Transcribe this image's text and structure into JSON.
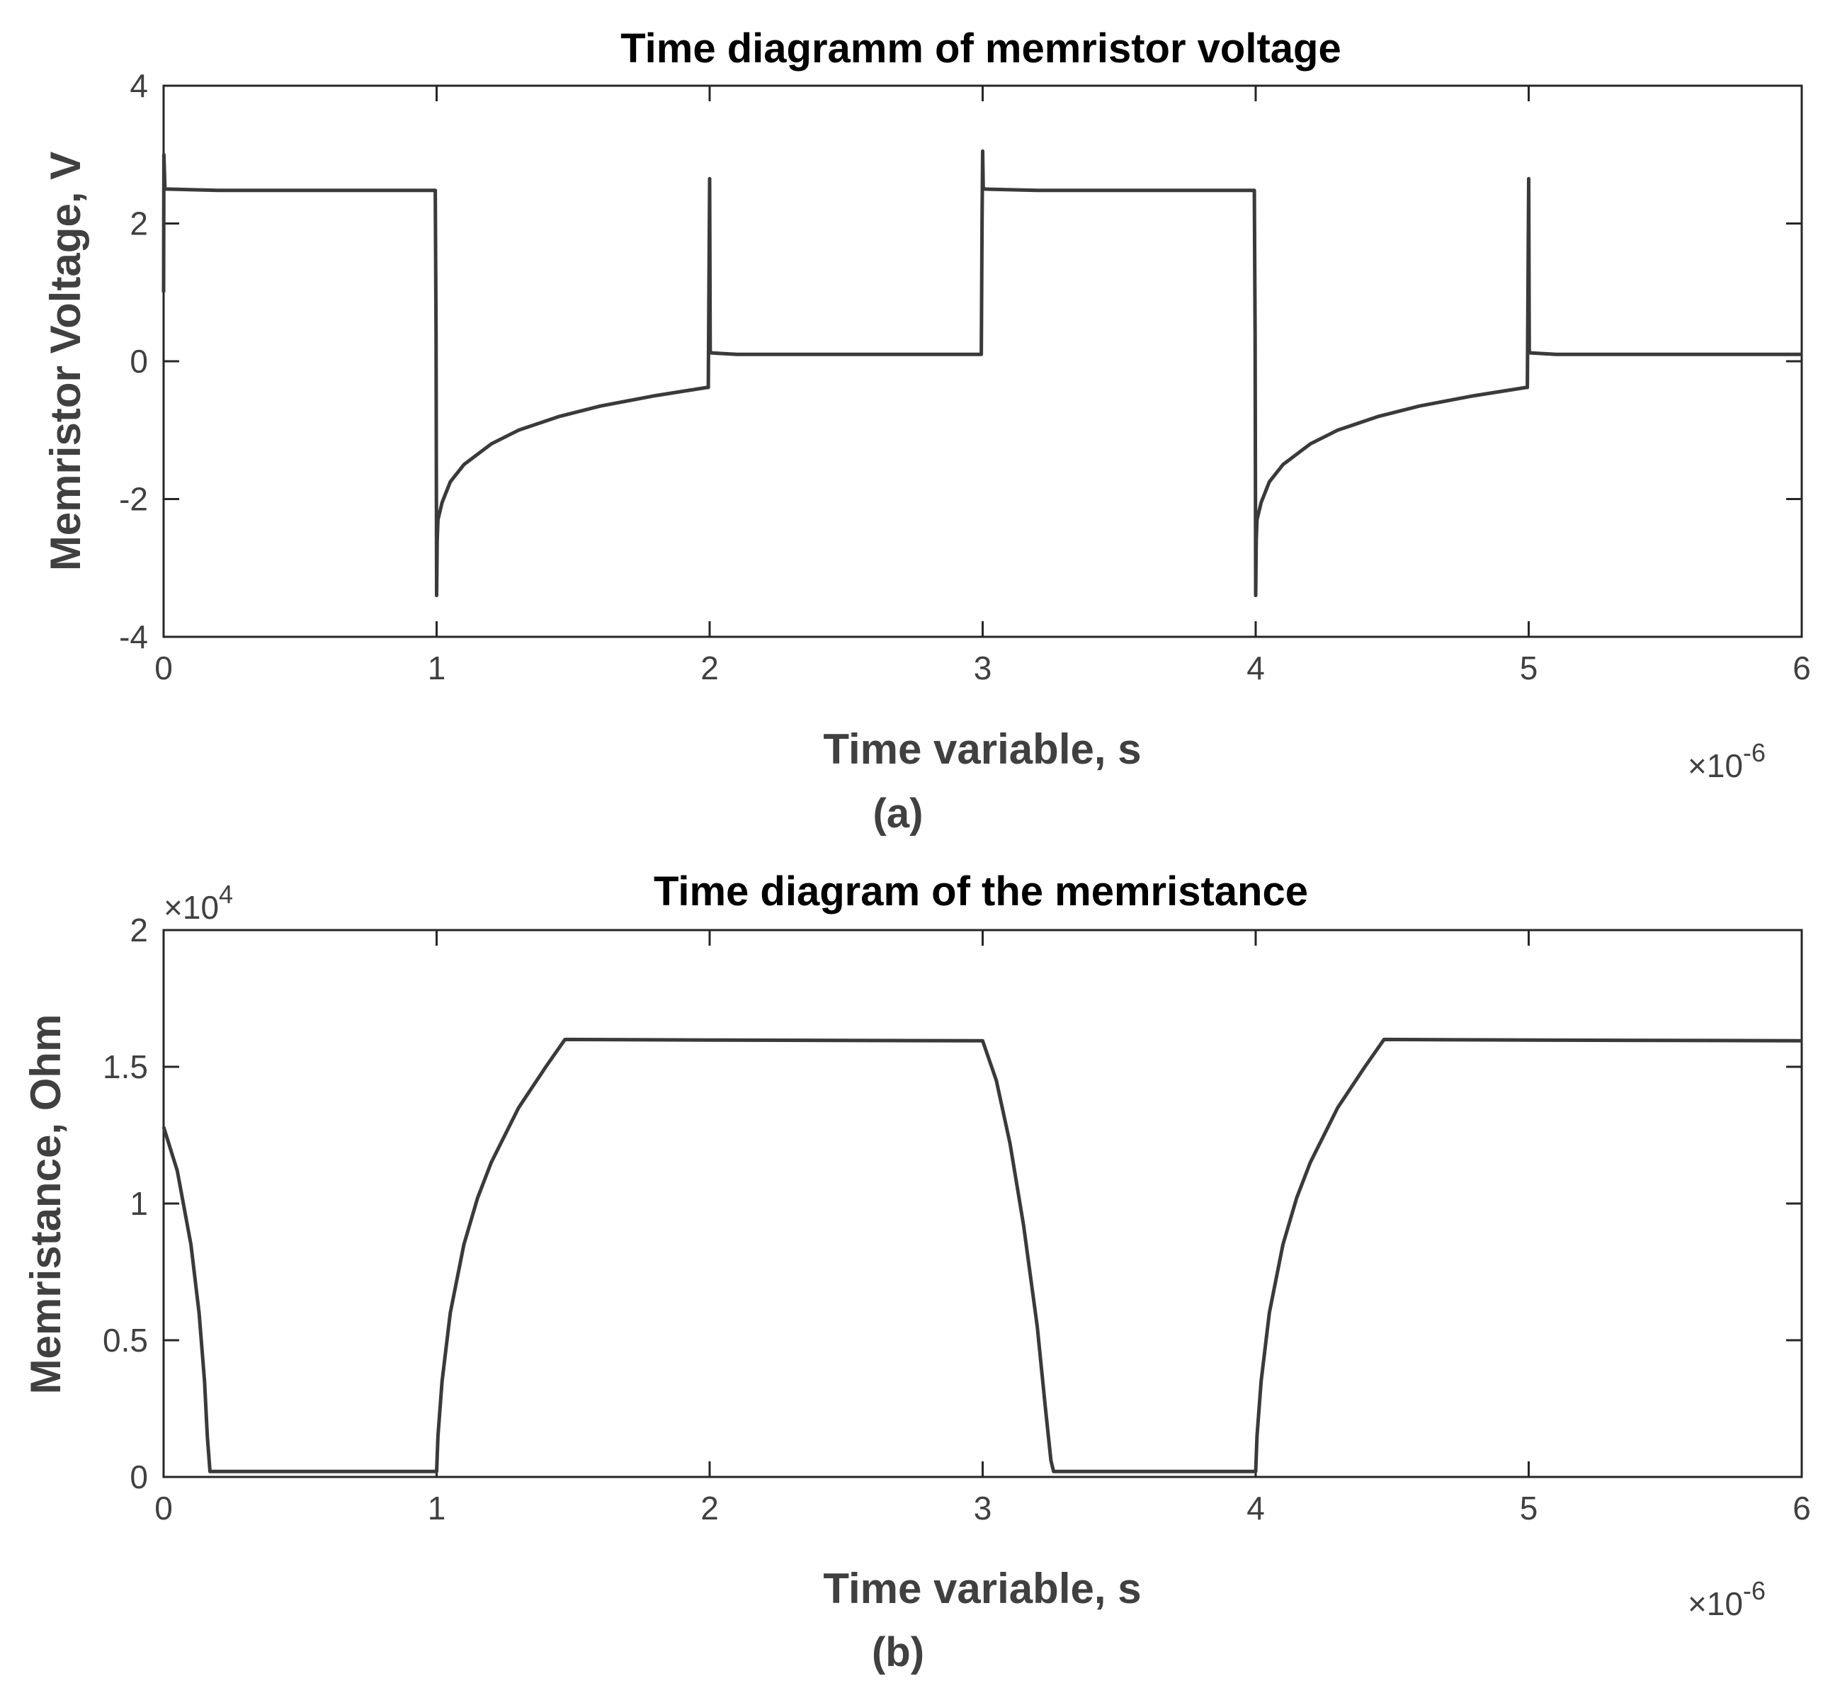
{
  "chart_data": [
    {
      "type": "line",
      "title": "Time diagramm of memristor voltage",
      "xlabel": "Time variable, s",
      "ylabel": "Memristor Voltage, V",
      "caption": "(a)",
      "x_exponent_label": {
        "base": "×10",
        "exp": "-6"
      },
      "xlim": [
        0,
        6
      ],
      "ylim": [
        -4,
        4
      ],
      "x_ticks": [
        0,
        1,
        2,
        3,
        4,
        5,
        6
      ],
      "y_ticks": [
        -4,
        -2,
        0,
        2,
        4
      ],
      "x_tick_labels": [
        "0",
        "1",
        "2",
        "3",
        "4",
        "5",
        "6"
      ],
      "y_tick_labels": [
        "-4",
        "-2",
        "0",
        "2",
        "4"
      ],
      "line_color": "#3a3a3a",
      "series": [
        {
          "x": [
            0,
            0.001,
            0.005,
            0.01,
            0.2,
            0.99,
            0.995,
            0.998,
            1.0,
            1.002,
            1.005,
            1.02,
            1.05,
            1.1,
            1.2,
            1.3,
            1.45,
            1.6,
            1.8,
            1.99,
            1.995,
            2.0,
            2.002,
            2.006,
            2.01,
            2.1,
            2.99,
            2.995,
            2.998,
            3.0,
            3.002,
            3.008,
            3.2,
            3.99,
            3.995,
            3.998,
            4.0,
            4.002,
            4.005,
            4.02,
            4.05,
            4.1,
            4.2,
            4.3,
            4.45,
            4.6,
            4.8,
            4.99,
            4.995,
            5.0,
            5.002,
            5.006,
            5.01,
            5.1,
            6.0
          ],
          "y": [
            1.0,
            3.0,
            2.5,
            2.5,
            2.48,
            2.48,
            2.48,
            0.4,
            -3.4,
            -2.6,
            -2.3,
            -2.05,
            -1.75,
            -1.5,
            -1.2,
            -1.0,
            -0.8,
            -0.65,
            -0.5,
            -0.38,
            -0.38,
            2.65,
            0.15,
            0.12,
            0.12,
            0.1,
            0.1,
            0.1,
            2.1,
            3.05,
            2.52,
            2.5,
            2.48,
            2.48,
            2.48,
            0.4,
            -3.4,
            -2.6,
            -2.3,
            -2.05,
            -1.75,
            -1.5,
            -1.2,
            -1.0,
            -0.8,
            -0.65,
            -0.5,
            -0.38,
            -0.38,
            2.65,
            0.15,
            0.12,
            0.12,
            0.1,
            0.1
          ]
        }
      ]
    },
    {
      "type": "line",
      "title": "Time diagram of the memristance",
      "xlabel": "Time variable, s",
      "ylabel": "Memristance, Ohm",
      "caption": "(b)",
      "x_exponent_label": {
        "base": "×10",
        "exp": "-6"
      },
      "y_exponent_label": {
        "base": "×10",
        "exp": "4"
      },
      "xlim": [
        0,
        6
      ],
      "ylim": [
        0,
        2
      ],
      "x_ticks": [
        0,
        1,
        2,
        3,
        4,
        5,
        6
      ],
      "y_ticks": [
        0,
        0.5,
        1,
        1.5,
        2
      ],
      "x_tick_labels": [
        "0",
        "1",
        "2",
        "3",
        "4",
        "5",
        "6"
      ],
      "y_tick_labels": [
        "0",
        "0.5",
        "1",
        "1.5",
        "2"
      ],
      "line_color": "#3a3a3a",
      "series": [
        {
          "x": [
            0,
            0.05,
            0.1,
            0.13,
            0.15,
            0.16,
            0.17,
            1.0,
            1.005,
            1.02,
            1.05,
            1.1,
            1.15,
            1.2,
            1.3,
            1.4,
            1.47,
            2.0,
            3.0,
            3.05,
            3.1,
            3.15,
            3.2,
            3.23,
            3.25,
            3.26,
            4.0,
            4.005,
            4.02,
            4.05,
            4.1,
            4.15,
            4.2,
            4.3,
            4.4,
            4.47,
            5.0,
            6.0
          ],
          "y": [
            1.28,
            1.12,
            0.85,
            0.6,
            0.35,
            0.15,
            0.02,
            0.02,
            0.15,
            0.35,
            0.6,
            0.85,
            1.02,
            1.15,
            1.35,
            1.5,
            1.6,
            1.598,
            1.595,
            1.45,
            1.22,
            0.92,
            0.55,
            0.25,
            0.06,
            0.02,
            0.02,
            0.15,
            0.35,
            0.6,
            0.85,
            1.02,
            1.15,
            1.35,
            1.5,
            1.6,
            1.598,
            1.595
          ]
        }
      ]
    }
  ]
}
